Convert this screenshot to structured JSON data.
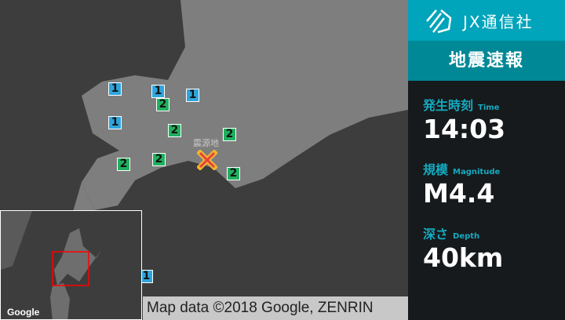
{
  "brand": {
    "name": "JX通信社"
  },
  "panel": {
    "title": "地震速報",
    "time": {
      "label": "発生時刻",
      "label_en": "Time",
      "value": "14:03"
    },
    "magnitude": {
      "label": "規模",
      "label_en": "Magnitude",
      "value": "M4.4"
    },
    "depth": {
      "label": "深さ",
      "label_en": "Depth",
      "value": "40km"
    }
  },
  "map": {
    "epicenter_label": "震源地",
    "attribution": "Map data ©2018 Google, ZENRIN",
    "google_logo": "Google",
    "colors": {
      "intensity_1": "#2fa4dc",
      "intensity_2": "#21b060",
      "epicenter": "#e8403a",
      "inset_box": "#ff0000"
    },
    "intensity_markers": [
      "1",
      "1",
      "1",
      "1",
      "1",
      "2",
      "2",
      "2",
      "2",
      "2",
      "2"
    ]
  }
}
